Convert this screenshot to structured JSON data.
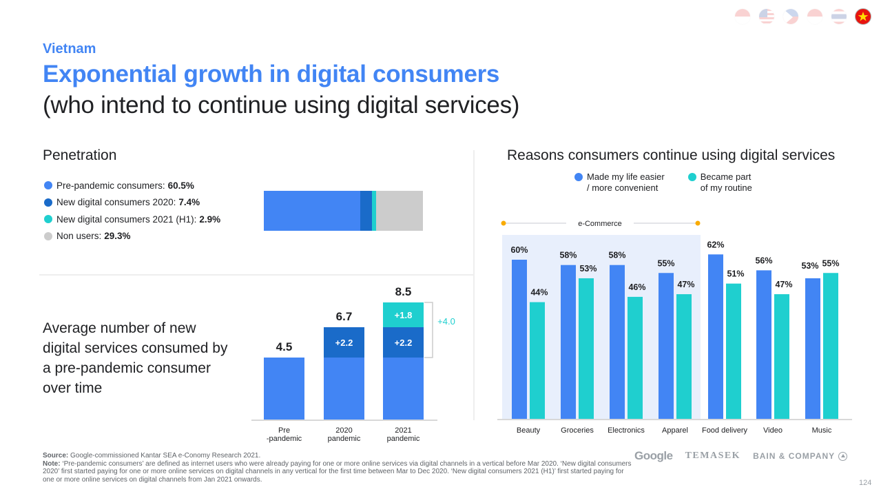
{
  "header": {
    "country": "Vietnam",
    "title": "Exponential growth in digital consumers",
    "subtitle": "(who intend to continue using digital services)",
    "flags": [
      {
        "name": "indonesia",
        "active": false
      },
      {
        "name": "malaysia",
        "active": false
      },
      {
        "name": "philippines",
        "active": false
      },
      {
        "name": "singapore",
        "active": false
      },
      {
        "name": "thailand",
        "active": false
      },
      {
        "name": "vietnam",
        "active": true
      }
    ]
  },
  "colors": {
    "pre_pandemic": "#4285f4",
    "new_2020": "#1a6bc9",
    "new_2021": "#1fcfcf",
    "non_users": "#cccccc",
    "ecommerce_band": "#e8effc",
    "ecommerce_marker": "#f9ab00",
    "delta_label": "#1fcfcf"
  },
  "penetration": {
    "title": "Penetration",
    "legend": [
      {
        "label": "Pre-pandemic consumers:",
        "value": "60.5%",
        "color_key": "pre_pandemic"
      },
      {
        "label": "New digital consumers 2020:",
        "value": "7.4%",
        "color_key": "new_2020"
      },
      {
        "label": "New digital consumers 2021 (H1):",
        "value": "2.9%",
        "color_key": "new_2021"
      },
      {
        "label": "Non users:",
        "value": "29.3%",
        "color_key": "non_users"
      }
    ]
  },
  "avg_services": {
    "description": "Average number of new digital services consumed by a pre-pandemic consumer over time"
  },
  "reasons": {
    "title": "Reasons consumers continue using digital services",
    "legend": [
      {
        "label_line1": "Made my life easier",
        "label_line2": "/ more convenient",
        "color_key": "pre_pandemic"
      },
      {
        "label_line1": "Became part",
        "label_line2": "of my routine",
        "color_key": "new_2021"
      }
    ],
    "group_label": "e-Commerce"
  },
  "chart_data": [
    {
      "type": "bar",
      "title": "Penetration",
      "orientation": "horizontal-stacked",
      "categories": [
        "Penetration"
      ],
      "series": [
        {
          "name": "Pre-pandemic consumers",
          "values": [
            60.5
          ]
        },
        {
          "name": "New digital consumers 2020",
          "values": [
            7.4
          ]
        },
        {
          "name": "New digital consumers 2021 (H1)",
          "values": [
            2.9
          ]
        },
        {
          "name": "Non users",
          "values": [
            29.3
          ]
        }
      ],
      "unit": "%",
      "xlim": [
        0,
        100
      ]
    },
    {
      "type": "bar",
      "title": "Average number of new digital services consumed by a pre-pandemic consumer over time",
      "orientation": "vertical-stacked",
      "categories": [
        "Pre\n-pandemic",
        "2020\npandemic",
        "2021\npandemic"
      ],
      "category_lines": [
        [
          "Pre",
          "-pandemic"
        ],
        [
          "2020",
          "pandemic"
        ],
        [
          "2021",
          "pandemic"
        ]
      ],
      "series": [
        {
          "name": "Base",
          "values": [
            4.5,
            4.5,
            4.5
          ],
          "labels": [
            "",
            "",
            ""
          ]
        },
        {
          "name": "Added 2020",
          "values": [
            0,
            2.2,
            2.2
          ],
          "labels": [
            "",
            "+2.2",
            "+2.2"
          ]
        },
        {
          "name": "Added 2021",
          "values": [
            0,
            0,
            1.8
          ],
          "labels": [
            "",
            "",
            "+1.8"
          ]
        }
      ],
      "totals": [
        "4.5",
        "6.7",
        "8.5"
      ],
      "annotation": "+4.0",
      "ylim": [
        0,
        10
      ]
    },
    {
      "type": "bar",
      "title": "Reasons consumers continue using digital services",
      "orientation": "vertical-grouped",
      "categories": [
        "Beauty",
        "Groceries",
        "Electronics",
        "Apparel",
        "Food delivery",
        "Video",
        "Music"
      ],
      "series": [
        {
          "name": "Made my life easier / more convenient",
          "values": [
            60,
            58,
            58,
            55,
            62,
            56,
            53
          ]
        },
        {
          "name": "Became part of my routine",
          "values": [
            44,
            53,
            46,
            47,
            51,
            47,
            55
          ]
        }
      ],
      "unit": "%",
      "group_annotation": {
        "label": "e-Commerce",
        "categories": [
          "Beauty",
          "Groceries",
          "Electronics",
          "Apparel"
        ]
      },
      "ylim": [
        0,
        100
      ]
    }
  ],
  "footer": {
    "source_label": "Source:",
    "source_text": " Google-commissioned Kantar SEA e-Conomy Research 2021.",
    "note_label": "Note:",
    "note_text": " ‘Pre-pandemic consumers’ are defined as internet users who were already paying for one or more online services via digital channels in a vertical before Mar 2020. ‘New digital consumers 2020’ first started paying for one or more online services on digital channels in any vertical for the first time between Mar to Dec 2020. ‘New digital consumers 2021 (H1)’ first started paying for one or more online services on digital channels from Jan 2021 onwards.",
    "logos": [
      "Google",
      "TEMASEK",
      "BAIN & COMPANY"
    ],
    "page_number": "124"
  }
}
